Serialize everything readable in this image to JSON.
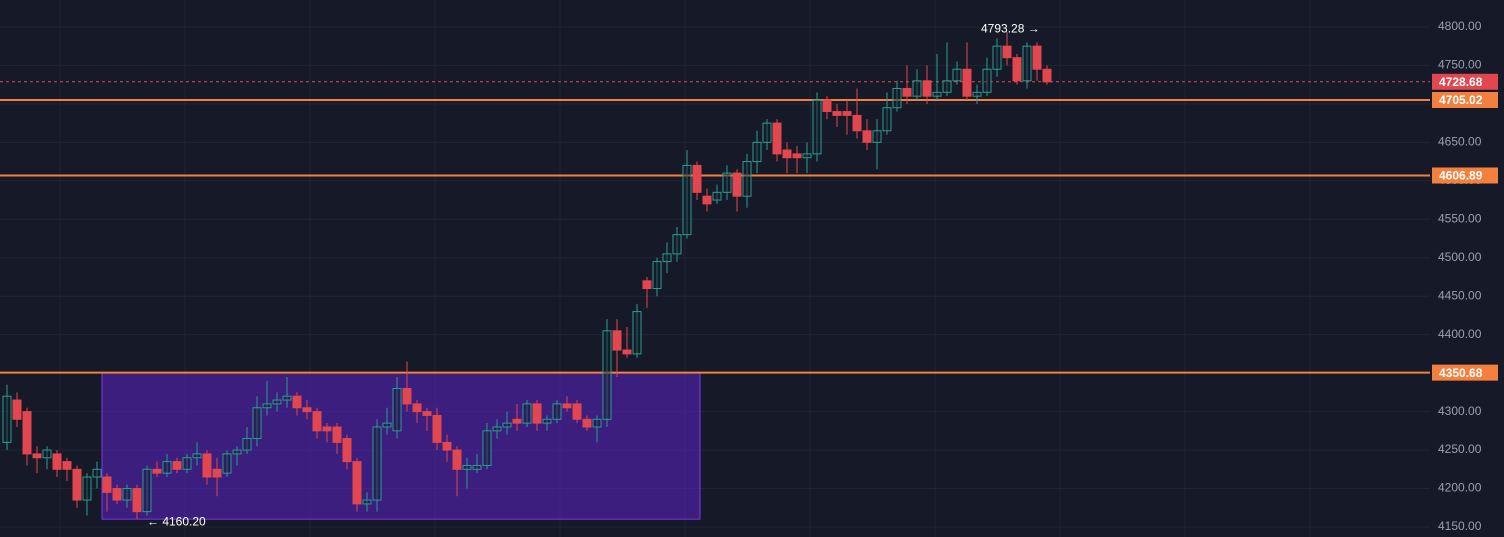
{
  "chart_data": {
    "type": "candlestick",
    "open": [
      4260,
      4315,
      4300,
      4245,
      4240,
      4245,
      4235,
      4225,
      4185,
      4215,
      4215,
      4200,
      4185,
      4200,
      4170,
      4225,
      4220,
      4235,
      4225,
      4240,
      4245,
      4225,
      4220,
      4245,
      4250,
      4265,
      4305,
      4310,
      4315,
      4320,
      4305,
      4300,
      4280,
      4280,
      4265,
      4235,
      4180,
      4185,
      4280,
      4275,
      4330,
      4310,
      4300,
      4295,
      4260,
      4250,
      4225,
      4225,
      4230,
      4275,
      4280,
      4290,
      4285,
      4310,
      4285,
      4290,
      4310,
      4310,
      4290,
      4280,
      4290,
      4405,
      4380,
      4375,
      4470,
      4460,
      4495,
      4505,
      4530,
      4620,
      4580,
      4575,
      4585,
      4610,
      4580,
      4625,
      4650,
      4675,
      4640,
      4635,
      4630,
      4635,
      4705,
      4690,
      4690,
      4685,
      4665,
      4650,
      4665,
      4695,
      4720,
      4710,
      4730,
      4710,
      4715,
      4730,
      4745,
      4710,
      4715,
      4745,
      4775,
      4760,
      4730,
      4775,
      4745
    ],
    "high": [
      4335,
      4325,
      4305,
      4255,
      4255,
      4250,
      4240,
      4230,
      4220,
      4235,
      4220,
      4205,
      4205,
      4205,
      4230,
      4235,
      4245,
      4240,
      4245,
      4260,
      4250,
      4240,
      4250,
      4255,
      4280,
      4320,
      4340,
      4325,
      4345,
      4325,
      4315,
      4305,
      4285,
      4285,
      4270,
      4240,
      4195,
      4290,
      4305,
      4345,
      4365,
      4315,
      4305,
      4305,
      4270,
      4255,
      4240,
      4245,
      4285,
      4290,
      4300,
      4310,
      4315,
      4315,
      4295,
      4315,
      4320,
      4315,
      4295,
      4295,
      4420,
      4420,
      4410,
      4440,
      4475,
      4500,
      4520,
      4540,
      4640,
      4625,
      4590,
      4595,
      4620,
      4615,
      4635,
      4665,
      4680,
      4680,
      4650,
      4645,
      4650,
      4715,
      4710,
      4700,
      4705,
      4720,
      4680,
      4680,
      4715,
      4730,
      4750,
      4745,
      4750,
      4765,
      4780,
      4755,
      4780,
      4725,
      4760,
      4785,
      4793.28,
      4765,
      4780,
      4780,
      4750
    ],
    "low": [
      4250,
      4280,
      4230,
      4220,
      4225,
      4215,
      4210,
      4175,
      4165,
      4200,
      4170,
      4180,
      4175,
      4160.2,
      4165,
      4215,
      4215,
      4220,
      4220,
      4230,
      4205,
      4190,
      4215,
      4230,
      4245,
      4255,
      4295,
      4300,
      4305,
      4295,
      4290,
      4265,
      4260,
      4245,
      4225,
      4170,
      4170,
      4170,
      4270,
      4265,
      4300,
      4285,
      4275,
      4250,
      4235,
      4190,
      4200,
      4220,
      4225,
      4265,
      4270,
      4275,
      4280,
      4275,
      4275,
      4285,
      4300,
      4285,
      4275,
      4260,
      4280,
      4345,
      4370,
      4370,
      4435,
      4450,
      4480,
      4495,
      4525,
      4575,
      4560,
      4570,
      4575,
      4560,
      4565,
      4610,
      4640,
      4625,
      4610,
      4610,
      4610,
      4625,
      4680,
      4670,
      4660,
      4655,
      4640,
      4615,
      4660,
      4690,
      4700,
      4705,
      4700,
      4705,
      4710,
      4725,
      4705,
      4700,
      4710,
      4735,
      4750,
      4725,
      4720,
      4730,
      4725
    ],
    "close": [
      4320,
      4290,
      4245,
      4240,
      4250,
      4225,
      4225,
      4185,
      4215,
      4225,
      4195,
      4185,
      4200,
      4170,
      4225,
      4220,
      4235,
      4225,
      4240,
      4245,
      4215,
      4215,
      4245,
      4250,
      4265,
      4305,
      4310,
      4315,
      4320,
      4305,
      4300,
      4275,
      4275,
      4260,
      4235,
      4180,
      4185,
      4280,
      4285,
      4330,
      4310,
      4300,
      4295,
      4260,
      4250,
      4225,
      4230,
      4230,
      4275,
      4280,
      4285,
      4285,
      4310,
      4285,
      4290,
      4310,
      4305,
      4290,
      4280,
      4290,
      4405,
      4380,
      4375,
      4430,
      4460,
      4495,
      4505,
      4530,
      4620,
      4585,
      4570,
      4585,
      4610,
      4580,
      4625,
      4650,
      4675,
      4635,
      4630,
      4630,
      4635,
      4705,
      4690,
      4685,
      4685,
      4665,
      4650,
      4665,
      4695,
      4720,
      4710,
      4730,
      4710,
      4715,
      4730,
      4745,
      4710,
      4715,
      4745,
      4775,
      4760,
      4730,
      4775,
      4745,
      4728.68
    ],
    "up_color": "#2a9d8f",
    "down_color": "#e2474f",
    "ylim": [
      4137,
      4835
    ],
    "yticks": [
      {
        "value": 4150,
        "label": "4150.00"
      },
      {
        "value": 4200,
        "label": "4200.00"
      },
      {
        "value": 4250,
        "label": "4250.00"
      },
      {
        "value": 4300,
        "label": "4300.00"
      },
      {
        "value": 4350,
        "label": "4350.00"
      },
      {
        "value": 4400,
        "label": "4400.00"
      },
      {
        "value": 4450,
        "label": "4450.00"
      },
      {
        "value": 4500,
        "label": "4500.00"
      },
      {
        "value": 4550,
        "label": "4550.00"
      },
      {
        "value": 4600,
        "label": "4600.00"
      },
      {
        "value": 4650,
        "label": "4650.00"
      },
      {
        "value": 4700,
        "label": "4700.00"
      },
      {
        "value": 4750,
        "label": "4750.00"
      },
      {
        "value": 4800,
        "label": "4800.00"
      }
    ],
    "grid": true,
    "levels": [
      {
        "value": 4705.02,
        "color": "#f4803e"
      },
      {
        "value": 4606.89,
        "color": "#f4803e"
      },
      {
        "value": 4350.68,
        "color": "#f4803e"
      }
    ],
    "last_price": {
      "value": 4728.68,
      "color": "#e2474f"
    },
    "range_box_color": "#5b22c4",
    "annotations": {
      "high": "4793.28 →",
      "low": "← 4160.20"
    }
  }
}
